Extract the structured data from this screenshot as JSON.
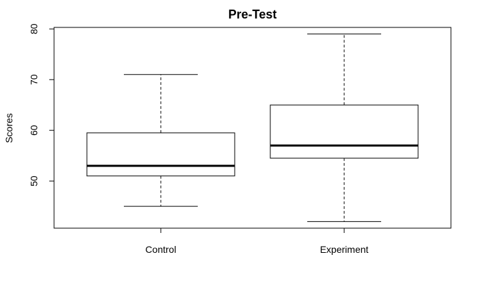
{
  "chart_data": {
    "type": "boxplot",
    "title": "Pre-Test",
    "xlabel": "",
    "ylabel": "Scores",
    "ylim": [
      40.7,
      80.3
    ],
    "yticks": [
      50,
      60,
      70,
      80
    ],
    "grid": false,
    "categories": [
      "Control",
      "Experiment"
    ],
    "boxes": [
      {
        "name": "Control",
        "min": 45,
        "q1": 51,
        "median": 53,
        "q3": 59.5,
        "max": 71
      },
      {
        "name": "Experiment",
        "min": 42,
        "q1": 54.5,
        "median": 57,
        "q3": 65,
        "max": 79
      }
    ]
  }
}
